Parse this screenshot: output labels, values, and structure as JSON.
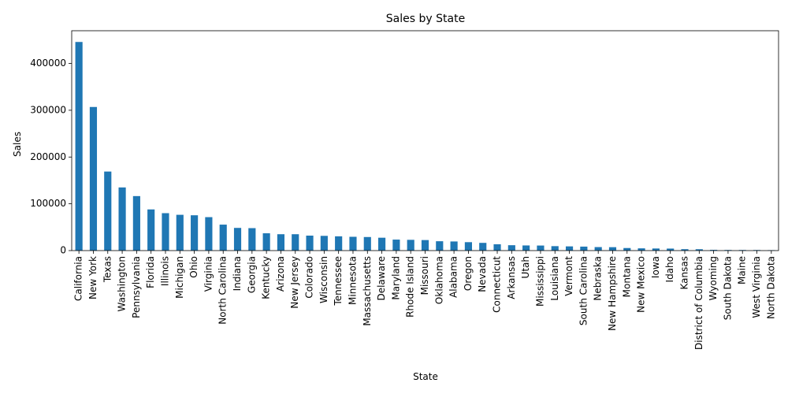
{
  "chart_data": {
    "type": "bar",
    "title": "Sales by State",
    "xlabel": "State",
    "ylabel": "Sales",
    "ylim": [
      0,
      470000
    ],
    "yticks": [
      0,
      100000,
      200000,
      300000,
      400000
    ],
    "ytick_labels": [
      "0",
      "100000",
      "200000",
      "300000",
      "400000"
    ],
    "bar_color": "#1f77b4",
    "grid": false,
    "categories": [
      "California",
      "New York",
      "Texas",
      "Washington",
      "Pennsylvania",
      "Florida",
      "Illinois",
      "Michigan",
      "Ohio",
      "Virginia",
      "North Carolina",
      "Indiana",
      "Georgia",
      "Kentucky",
      "Arizona",
      "New Jersey",
      "Colorado",
      "Wisconsin",
      "Tennessee",
      "Minnesota",
      "Massachusetts",
      "Delaware",
      "Maryland",
      "Rhode Island",
      "Missouri",
      "Oklahoma",
      "Alabama",
      "Oregon",
      "Nevada",
      "Connecticut",
      "Arkansas",
      "Utah",
      "Mississippi",
      "Louisiana",
      "Vermont",
      "South Carolina",
      "Nebraska",
      "New Hampshire",
      "Montana",
      "New Mexico",
      "Iowa",
      "Idaho",
      "Kansas",
      "District of Columbia",
      "Wyoming",
      "South Dakota",
      "Maine",
      "West Virginia",
      "North Dakota"
    ],
    "values": [
      446000,
      307000,
      169000,
      135000,
      116500,
      88000,
      80000,
      76500,
      75500,
      71500,
      55500,
      48500,
      48000,
      37000,
      35000,
      35000,
      32000,
      31500,
      30500,
      29500,
      29000,
      27500,
      23500,
      23000,
      22500,
      20000,
      19500,
      18000,
      16500,
      13500,
      11500,
      11000,
      10800,
      9500,
      9000,
      8500,
      7500,
      7300,
      5500,
      4800,
      4500,
      4300,
      3000,
      2900,
      1600,
      1300,
      1250,
      1200,
      900
    ]
  }
}
